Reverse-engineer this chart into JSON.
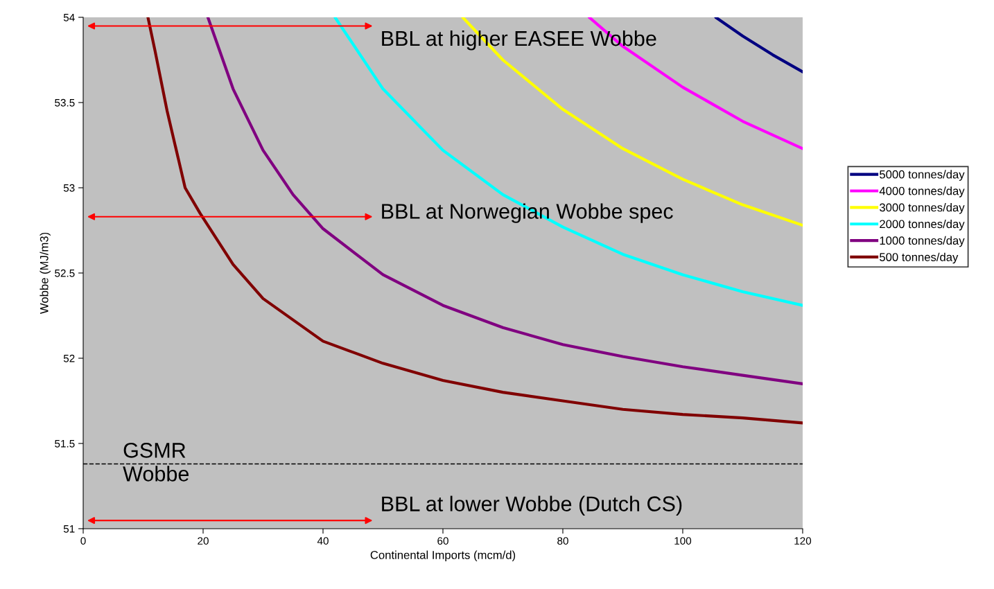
{
  "chart_data": {
    "type": "line",
    "xlabel": "Continental Imports (mcm/d)",
    "ylabel": "Wobbe (MJ/m3)",
    "xlim": [
      0,
      120
    ],
    "xticks": [
      0,
      20,
      40,
      60,
      80,
      100,
      120
    ],
    "ylim": [
      51,
      54
    ],
    "yticks": [
      51,
      {
        "value": 51.5,
        "label": "51.5"
      },
      52,
      {
        "value": 52.5,
        "label": "52.5"
      },
      53,
      {
        "value": 53.5,
        "label": "53.5"
      },
      54
    ],
    "grid": false,
    "legend": "right",
    "line_style": "solid",
    "marker": "none",
    "series": [
      {
        "name": "5000 tonnes/day",
        "color": "#000080",
        "x": [
          105.5,
          110,
          115,
          120
        ],
        "values": [
          54,
          53.89,
          53.78,
          53.68
        ]
      },
      {
        "name": "4000 tonnes/day",
        "color": "#ff00ff",
        "x": [
          84.4,
          90,
          100,
          110,
          120
        ],
        "values": [
          54,
          53.83,
          53.59,
          53.39,
          53.23
        ]
      },
      {
        "name": "3000 tonnes/day",
        "color": "#ffff00",
        "x": [
          63.3,
          70,
          80,
          90,
          100,
          110,
          120
        ],
        "values": [
          54,
          53.75,
          53.46,
          53.23,
          53.05,
          52.9,
          52.78
        ]
      },
      {
        "name": "2000 tonnes/day",
        "color": "#00ffff",
        "x": [
          42,
          50,
          60,
          70,
          80,
          90,
          100,
          110,
          120
        ],
        "values": [
          54,
          53.58,
          53.22,
          52.96,
          52.77,
          52.61,
          52.49,
          52.39,
          52.31
        ]
      },
      {
        "name": "1000 tonnes/day",
        "color": "#800080",
        "x": [
          20.8,
          25,
          30,
          35,
          40,
          50,
          60,
          70,
          80,
          90,
          100,
          110,
          120
        ],
        "values": [
          54,
          53.58,
          53.22,
          52.96,
          52.76,
          52.49,
          52.31,
          52.18,
          52.08,
          52.01,
          51.95,
          51.9,
          51.85
        ]
      },
      {
        "name": "500 tonnes/day",
        "color": "#800000",
        "x": [
          10.8,
          12,
          14,
          17,
          19.5,
          25,
          30,
          40,
          50,
          60,
          70,
          80,
          90,
          100,
          110,
          120
        ],
        "values": [
          54,
          53.8,
          53.45,
          53.0,
          52.85,
          52.55,
          52.35,
          52.1,
          51.97,
          51.87,
          51.8,
          51.75,
          51.7,
          51.67,
          51.65,
          51.62
        ]
      }
    ],
    "ref_lines": [
      {
        "axis": "y",
        "value": 51.38,
        "label": "GSMR\nWobbe",
        "color": "#000000",
        "line_style": "dashed"
      }
    ],
    "annotations": [
      "BBL at higher EASEE Wobbe",
      "BBL at Norwegian Wobbe spec",
      "BBL at lower Wobbe (Dutch CS)"
    ]
  }
}
